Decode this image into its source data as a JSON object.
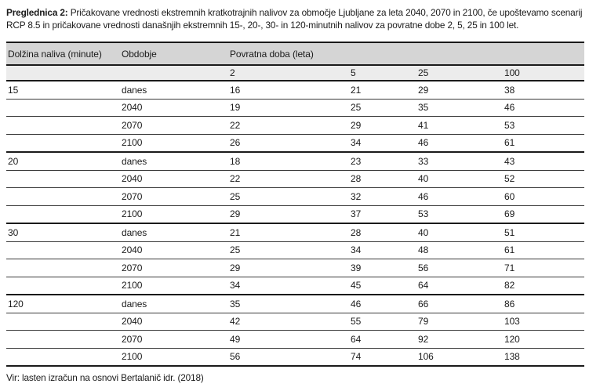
{
  "caption": {
    "label": "Preglednica 2:",
    "text": "Pričakovane vrednosti ekstremnih kratkotrajnih nalivov za območje Ljubljane za leta 2040, 2070 in 2100, če upoštevamo scenarij RCP 8.5 in pričakovane vrednosti današnjih ekstremnih 15-, 20-, 30- in 120-minutnih nalivov za povratne dobe 2, 5, 25 in 100 let."
  },
  "table": {
    "col1_header": "Dolžina naliva (minute)",
    "col2_header": "Obdobje",
    "span_header": "Povratna doba (leta)",
    "return_periods": [
      "2",
      "5",
      "25",
      "100"
    ],
    "groups": [
      {
        "duration": "15",
        "rows": [
          {
            "period": "danes",
            "values": [
              16,
              21,
              29,
              38
            ]
          },
          {
            "period": "2040",
            "values": [
              19,
              25,
              35,
              46
            ]
          },
          {
            "period": "2070",
            "values": [
              22,
              29,
              41,
              53
            ]
          },
          {
            "period": "2100",
            "values": [
              26,
              34,
              46,
              61
            ]
          }
        ]
      },
      {
        "duration": "20",
        "rows": [
          {
            "period": "danes",
            "values": [
              18,
              23,
              33,
              43
            ]
          },
          {
            "period": "2040",
            "values": [
              22,
              28,
              40,
              52
            ]
          },
          {
            "period": "2070",
            "values": [
              25,
              32,
              46,
              60
            ]
          },
          {
            "period": "2100",
            "values": [
              29,
              37,
              53,
              69
            ]
          }
        ]
      },
      {
        "duration": "30",
        "rows": [
          {
            "period": "danes",
            "values": [
              21,
              28,
              40,
              51
            ]
          },
          {
            "period": "2040",
            "values": [
              25,
              34,
              48,
              61
            ]
          },
          {
            "period": "2070",
            "values": [
              29,
              39,
              56,
              71
            ]
          },
          {
            "period": "2100",
            "values": [
              34,
              45,
              64,
              82
            ]
          }
        ]
      },
      {
        "duration": "120",
        "rows": [
          {
            "period": "danes",
            "values": [
              35,
              46,
              66,
              86
            ]
          },
          {
            "period": "2040",
            "values": [
              42,
              55,
              79,
              103
            ]
          },
          {
            "period": "2070",
            "values": [
              49,
              64,
              92,
              120
            ]
          },
          {
            "period": "2100",
            "values": [
              56,
              74,
              106,
              138
            ]
          }
        ]
      }
    ]
  },
  "source": "Vir: lasten izračun na osnovi Bertalanič idr. (2018)",
  "colors": {
    "text": "#1a1a1a",
    "header1": "#d5d5d5",
    "header2": "#ececec",
    "rule": "#1a1a1a",
    "thin_rule": "#3a3a3a",
    "background": "#ffffff"
  }
}
